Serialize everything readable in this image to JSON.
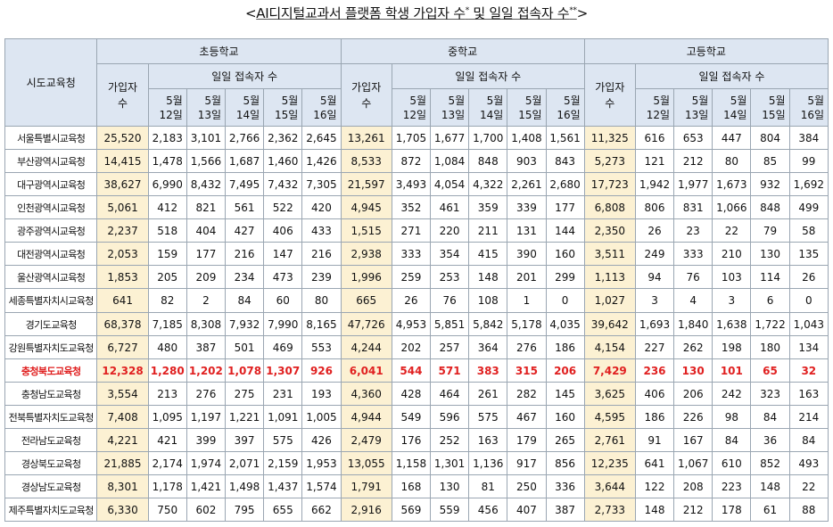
{
  "title": {
    "open": "<",
    "main": "AI디지털교과서 플랫폼 학생 가입자 수",
    "mark1": "*",
    "middle": " 및 일일 접속자 수",
    "mark2": "**",
    "close": ">"
  },
  "header": {
    "region": "시도교육청",
    "levels": [
      "초등학교",
      "중학교",
      "고등학교"
    ],
    "join": "가입자 수",
    "daily": "일일 접속자 수",
    "days": [
      {
        "month": "5월",
        "day": "12일"
      },
      {
        "month": "5월",
        "day": "13일"
      },
      {
        "month": "5월",
        "day": "14일"
      },
      {
        "month": "5월",
        "day": "15일"
      },
      {
        "month": "5월",
        "day": "16일"
      }
    ]
  },
  "rows": [
    {
      "region": "서울특별시교육청",
      "values": [
        "25,520",
        "2,183",
        "3,101",
        "2,766",
        "2,362",
        "2,645",
        "13,261",
        "1,705",
        "1,677",
        "1,700",
        "1,408",
        "1,561",
        "11,325",
        "616",
        "653",
        "447",
        "804",
        "384"
      ]
    },
    {
      "region": "부산광역시교육청",
      "values": [
        "14,415",
        "1,478",
        "1,566",
        "1,687",
        "1,460",
        "1,426",
        "8,533",
        "872",
        "1,084",
        "848",
        "903",
        "843",
        "5,273",
        "121",
        "212",
        "80",
        "85",
        "99"
      ]
    },
    {
      "region": "대구광역시교육청",
      "values": [
        "38,627",
        "6,990",
        "8,432",
        "7,495",
        "7,432",
        "7,305",
        "21,597",
        "3,493",
        "4,054",
        "4,322",
        "2,261",
        "2,680",
        "17,723",
        "1,942",
        "1,977",
        "1,673",
        "932",
        "1,692"
      ]
    },
    {
      "region": "인천광역시교육청",
      "values": [
        "5,061",
        "412",
        "821",
        "561",
        "522",
        "420",
        "4,945",
        "352",
        "461",
        "359",
        "339",
        "177",
        "6,808",
        "806",
        "831",
        "1,066",
        "848",
        "499"
      ]
    },
    {
      "region": "광주광역시교육청",
      "values": [
        "2,237",
        "518",
        "404",
        "427",
        "406",
        "433",
        "1,515",
        "271",
        "220",
        "211",
        "131",
        "144",
        "2,350",
        "26",
        "23",
        "22",
        "79",
        "58"
      ]
    },
    {
      "region": "대전광역시교육청",
      "values": [
        "2,053",
        "159",
        "177",
        "216",
        "147",
        "216",
        "2,938",
        "333",
        "354",
        "415",
        "390",
        "160",
        "3,511",
        "249",
        "333",
        "210",
        "130",
        "135"
      ]
    },
    {
      "region": "울산광역시교육청",
      "values": [
        "1,853",
        "205",
        "209",
        "234",
        "473",
        "239",
        "1,996",
        "259",
        "253",
        "148",
        "201",
        "299",
        "1,113",
        "94",
        "76",
        "103",
        "114",
        "26"
      ]
    },
    {
      "region": "세종특별자치시교육청",
      "values": [
        "641",
        "82",
        "2",
        "84",
        "60",
        "80",
        "665",
        "26",
        "76",
        "108",
        "1",
        "0",
        "1,027",
        "3",
        "4",
        "3",
        "6",
        "0"
      ]
    },
    {
      "region": "경기도교육청",
      "values": [
        "68,378",
        "7,185",
        "8,308",
        "7,932",
        "7,990",
        "8,165",
        "47,726",
        "4,953",
        "5,851",
        "5,842",
        "5,178",
        "4,035",
        "39,642",
        "1,693",
        "1,840",
        "1,638",
        "1,722",
        "1,043"
      ]
    },
    {
      "region": "강원특별자치도교육청",
      "values": [
        "6,727",
        "480",
        "387",
        "501",
        "469",
        "553",
        "4,244",
        "202",
        "257",
        "364",
        "276",
        "186",
        "4,154",
        "227",
        "262",
        "198",
        "180",
        "134"
      ]
    },
    {
      "region": "충청북도교육청",
      "values": [
        "12,328",
        "1,280",
        "1,202",
        "1,078",
        "1,307",
        "926",
        "6,041",
        "544",
        "571",
        "383",
        "315",
        "206",
        "7,429",
        "236",
        "130",
        "101",
        "65",
        "32"
      ],
      "highlight": true
    },
    {
      "region": "충청남도교육청",
      "values": [
        "3,554",
        "213",
        "276",
        "275",
        "231",
        "193",
        "4,360",
        "428",
        "464",
        "261",
        "282",
        "145",
        "3,625",
        "406",
        "206",
        "242",
        "323",
        "163"
      ]
    },
    {
      "region": "전북특별자치도교육청",
      "values": [
        "7,408",
        "1,095",
        "1,197",
        "1,221",
        "1,091",
        "1,005",
        "4,944",
        "549",
        "596",
        "575",
        "467",
        "160",
        "4,595",
        "186",
        "226",
        "98",
        "84",
        "214"
      ]
    },
    {
      "region": "전라남도교육청",
      "values": [
        "4,221",
        "421",
        "399",
        "397",
        "575",
        "426",
        "2,479",
        "176",
        "252",
        "163",
        "179",
        "265",
        "2,761",
        "91",
        "167",
        "84",
        "36",
        "84"
      ]
    },
    {
      "region": "경상북도교육청",
      "values": [
        "21,885",
        "2,174",
        "1,974",
        "2,071",
        "2,159",
        "1,953",
        "13,055",
        "1,158",
        "1,301",
        "1,136",
        "917",
        "856",
        "12,235",
        "641",
        "1,067",
        "610",
        "852",
        "493"
      ]
    },
    {
      "region": "경상남도교육청",
      "values": [
        "8,301",
        "1,178",
        "1,421",
        "1,498",
        "1,437",
        "1,574",
        "1,791",
        "168",
        "130",
        "81",
        "250",
        "336",
        "3,644",
        "122",
        "208",
        "223",
        "148",
        "22"
      ]
    },
    {
      "region": "제주특별자치도교육청",
      "values": [
        "6,330",
        "750",
        "602",
        "795",
        "655",
        "662",
        "2,916",
        "569",
        "559",
        "456",
        "407",
        "387",
        "2,733",
        "148",
        "212",
        "178",
        "61",
        "88"
      ]
    }
  ]
}
